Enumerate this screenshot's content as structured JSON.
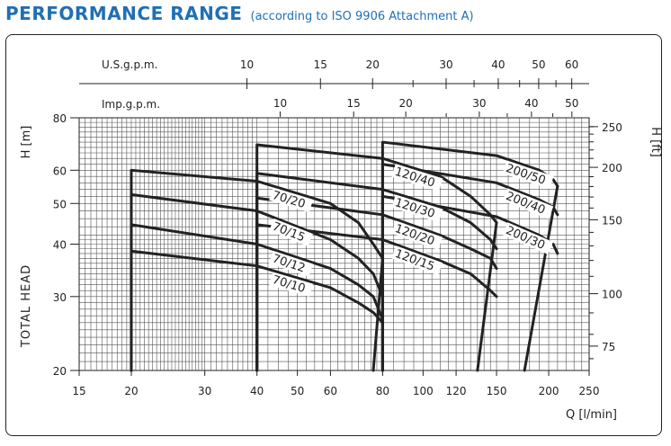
{
  "header": {
    "title": "PERFORMANCE RANGE",
    "subtitle": "(according to ISO 9906 Attachment A)"
  },
  "chart_data": {
    "type": "line",
    "title": "PERFORMANCE RANGE",
    "subtitle": "(according to ISO 9906 Attachment A)",
    "xlabel": "Q [l/min]",
    "ylabel_left": "H [m]",
    "ylabel_left_side": "TOTAL HEAD",
    "ylabel_right": "H [ft]",
    "x_scale": "log",
    "y_scale": "log",
    "xlim": [
      15,
      250
    ],
    "ylim": [
      20,
      80
    ],
    "grid": true,
    "x_ticks": [
      "15",
      "20",
      "30",
      "40",
      "50",
      "60",
      "80",
      "100",
      "120",
      "150",
      "200",
      "250"
    ],
    "y_ticks_m": [
      "20",
      "30",
      "40",
      "50",
      "60",
      "80"
    ],
    "y_ticks_ft": [
      "75",
      "100",
      "150",
      "200",
      "250"
    ],
    "us_gpm": {
      "label": "U.S.g.p.m.",
      "ticks": [
        "10",
        "15",
        "20",
        "30",
        "40",
        "50",
        "60"
      ]
    },
    "imp_gpm": {
      "label": "Imp.g.p.m.",
      "ticks": [
        "10",
        "15",
        "20",
        "30",
        "40",
        "50"
      ]
    },
    "series": [
      {
        "name": "70/20",
        "points": [
          [
            20,
            60
          ],
          [
            40,
            56.5
          ],
          [
            60,
            50
          ],
          [
            70,
            45
          ],
          [
            76,
            40
          ],
          [
            80,
            37
          ]
        ],
        "qmin": 20
      },
      {
        "name": "70/15",
        "points": [
          [
            20,
            52.5
          ],
          [
            40,
            48
          ],
          [
            60,
            41
          ],
          [
            70,
            37
          ],
          [
            76,
            34
          ],
          [
            80,
            30
          ]
        ],
        "qmin": 20
      },
      {
        "name": "70/12",
        "points": [
          [
            20,
            44.5
          ],
          [
            40,
            40
          ],
          [
            60,
            35
          ],
          [
            70,
            32
          ],
          [
            76,
            30
          ],
          [
            80,
            26.5
          ]
        ],
        "qmin": 20
      },
      {
        "name": "70/10",
        "points": [
          [
            20,
            38.5
          ],
          [
            40,
            35.5
          ],
          [
            60,
            31.5
          ],
          [
            70,
            29
          ],
          [
            76,
            27.5
          ],
          [
            80,
            26
          ]
        ],
        "qmin": 20
      },
      {
        "name": "120/40",
        "points": [
          [
            40,
            69
          ],
          [
            80,
            64
          ],
          [
            110,
            58
          ],
          [
            130,
            52
          ],
          [
            145,
            47
          ],
          [
            150,
            45
          ]
        ],
        "qmin": 40
      },
      {
        "name": "120/30",
        "points": [
          [
            40,
            59
          ],
          [
            80,
            54
          ],
          [
            110,
            49
          ],
          [
            130,
            45
          ],
          [
            145,
            41
          ],
          [
            150,
            39
          ]
        ],
        "qmin": 40
      },
      {
        "name": "120/20",
        "points": [
          [
            40,
            51.5
          ],
          [
            80,
            47
          ],
          [
            110,
            42
          ],
          [
            130,
            39
          ],
          [
            145,
            37
          ],
          [
            150,
            35
          ]
        ],
        "qmin": 40
      },
      {
        "name": "120/15",
        "points": [
          [
            40,
            44.5
          ],
          [
            80,
            41
          ],
          [
            110,
            36.5
          ],
          [
            130,
            34
          ],
          [
            145,
            31
          ],
          [
            150,
            30
          ]
        ],
        "qmin": 40
      },
      {
        "name": "200/50",
        "points": [
          [
            80,
            70
          ],
          [
            150,
            65
          ],
          [
            190,
            60
          ],
          [
            205,
            57
          ],
          [
            210,
            55
          ]
        ],
        "qmin": 80
      },
      {
        "name": "200/40",
        "points": [
          [
            80,
            62
          ],
          [
            150,
            56
          ],
          [
            190,
            51
          ],
          [
            205,
            49
          ],
          [
            210,
            47
          ]
        ],
        "qmin": 80
      },
      {
        "name": "200/30",
        "points": [
          [
            80,
            52
          ],
          [
            150,
            46.5
          ],
          [
            190,
            42
          ],
          [
            205,
            40
          ],
          [
            210,
            38
          ]
        ],
        "qmin": 80
      }
    ],
    "end_drops": [
      {
        "from": [
          80,
          37
        ],
        "to": [
          76,
          20
        ]
      },
      {
        "from": [
          150,
          45
        ],
        "to": [
          135,
          20
        ]
      },
      {
        "from": [
          210,
          55
        ],
        "to": [
          175,
          20
        ]
      }
    ]
  }
}
